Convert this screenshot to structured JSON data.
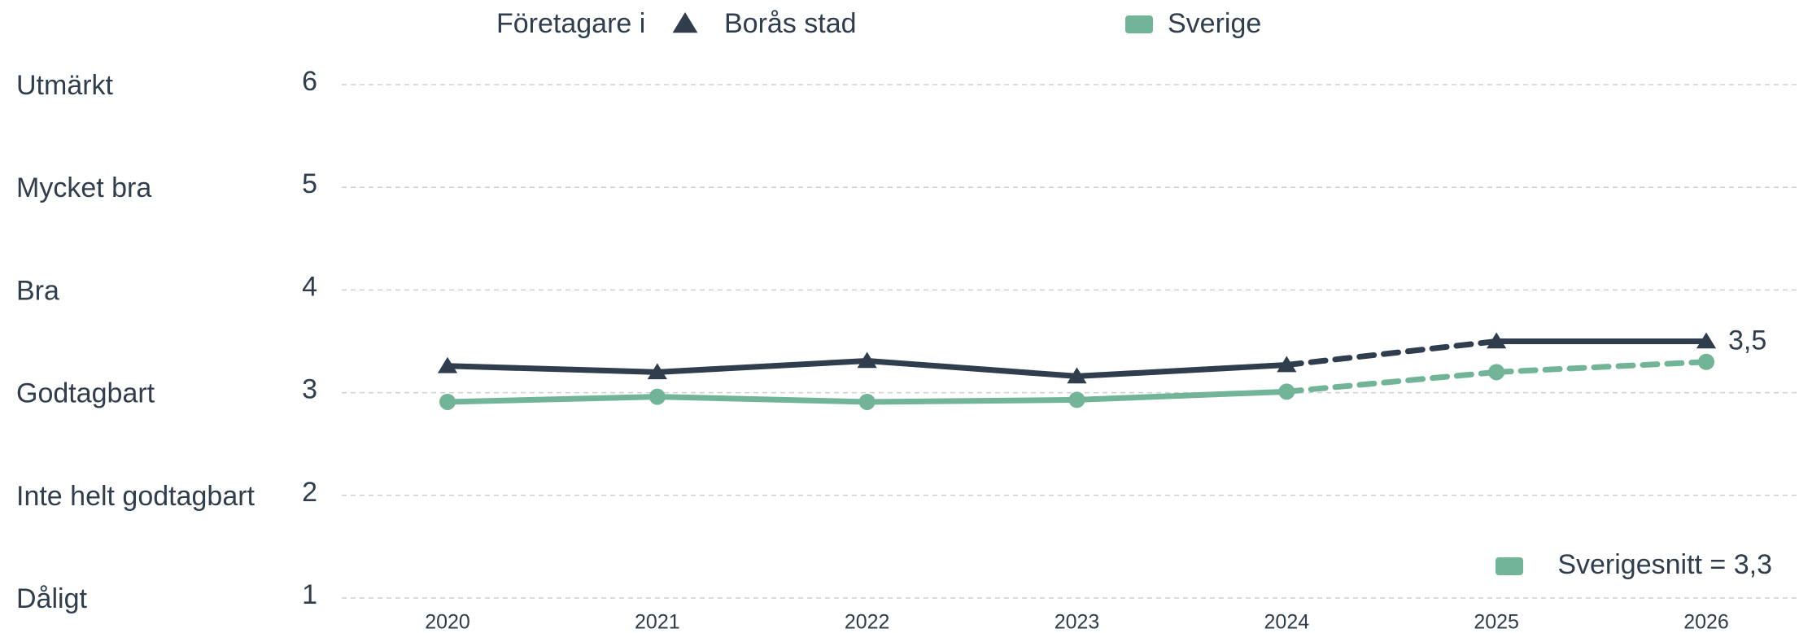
{
  "chart_data": {
    "type": "line",
    "legend_title": "Företagare i",
    "categories": [
      "2020",
      "2021",
      "2022",
      "2023",
      "2024",
      "2025",
      "2026"
    ],
    "series": [
      {
        "name": "Borås stad",
        "color": "#2f3d4c",
        "marker": "triangle",
        "values": [
          3.26,
          3.2,
          3.31,
          3.16,
          3.27,
          3.5,
          3.5
        ],
        "value_labels": [
          null,
          null,
          null,
          null,
          null,
          null,
          "3,5"
        ],
        "dashed_segments": [
          4
        ]
      },
      {
        "name": "Sverige",
        "color": "#72b497",
        "marker": "circle",
        "values": [
          2.91,
          2.96,
          2.91,
          2.93,
          3.01,
          3.2,
          3.3
        ],
        "dashed_segments": [
          4,
          5
        ]
      }
    ],
    "ylim": [
      1,
      6
    ],
    "yticks": [
      1,
      2,
      3,
      4,
      5,
      6
    ],
    "y_category_labels": [
      "Dåligt",
      "Inte helt godtagbart",
      "Godtagbart",
      "Bra",
      "Mycket bra",
      "Utmärkt"
    ],
    "grid": true,
    "annotation": "Sverigesnitt = 3,3"
  }
}
